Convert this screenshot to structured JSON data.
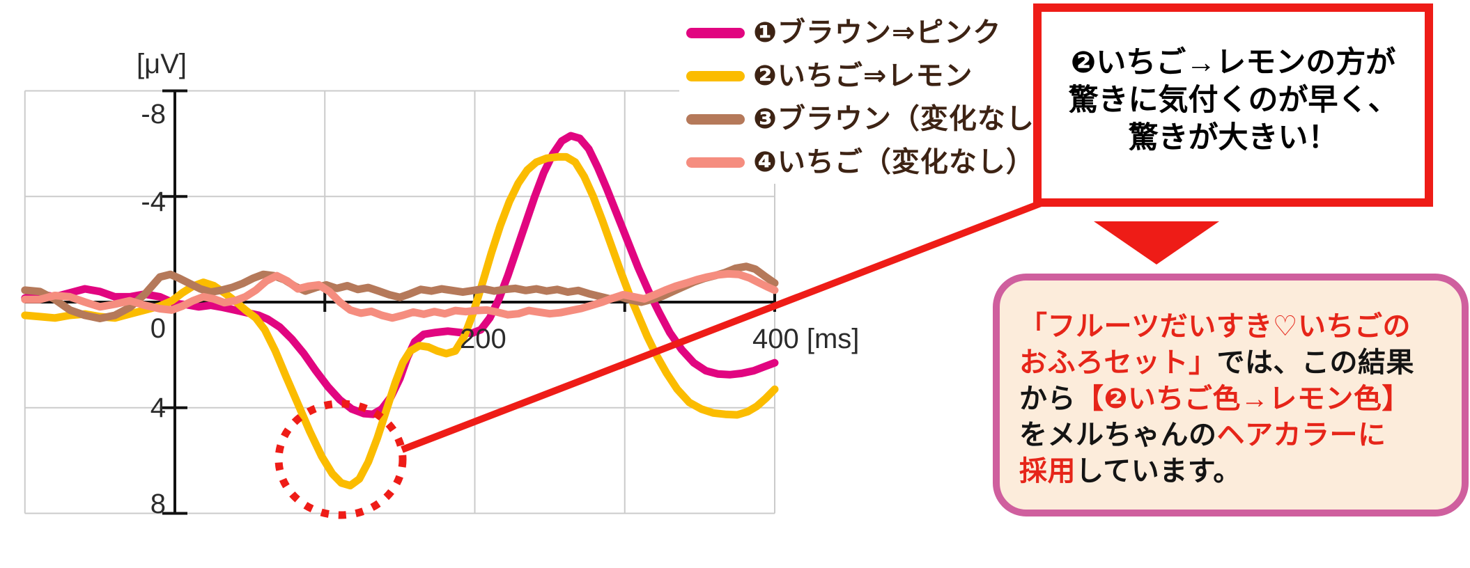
{
  "chart_data": {
    "type": "line",
    "title": "",
    "y_axis_unit_label": "[μV]",
    "x_axis_unit": "ms",
    "y_axis_inverted_negative_up": true,
    "grid": true,
    "legend_position": "top-right",
    "x_range_ms": [
      -100,
      400
    ],
    "y_range_uv": [
      -8,
      8
    ],
    "x_gridlines_ms": [
      -100,
      0,
      100,
      200,
      300,
      400
    ],
    "y_gridlines_uv": [
      -8,
      -4,
      0,
      4,
      8
    ],
    "x_axis_ticks_ms": [
      100,
      200,
      300,
      400
    ],
    "y_tick_labels": [
      "-8",
      "-4",
      "0",
      "4",
      "8"
    ],
    "x_tick_labels": [
      "200",
      "400 [ms]"
    ],
    "series": [
      {
        "name": "❶ブラウン⇒ピンク",
        "color": "#e10580",
        "points": [
          [
            -100,
            -0.15
          ],
          [
            -90,
            -0.3
          ],
          [
            -80,
            -0.2
          ],
          [
            -70,
            -0.35
          ],
          [
            -60,
            -0.5
          ],
          [
            -50,
            -0.4
          ],
          [
            -40,
            -0.2
          ],
          [
            -30,
            -0.2
          ],
          [
            -20,
            -0.3
          ],
          [
            -10,
            -0.2
          ],
          [
            0,
            0.05
          ],
          [
            8,
            0.1
          ],
          [
            16,
            0.18
          ],
          [
            24,
            0.12
          ],
          [
            32,
            0.2
          ],
          [
            40,
            0.3
          ],
          [
            48,
            0.4
          ],
          [
            56,
            0.5
          ],
          [
            62,
            0.65
          ],
          [
            70,
            0.95
          ],
          [
            78,
            1.4
          ],
          [
            86,
            1.95
          ],
          [
            94,
            2.6
          ],
          [
            102,
            3.2
          ],
          [
            110,
            3.7
          ],
          [
            118,
            4.05
          ],
          [
            126,
            4.22
          ],
          [
            132,
            4.25
          ],
          [
            138,
            4.05
          ],
          [
            144,
            3.6
          ],
          [
            150,
            2.9
          ],
          [
            155,
            2.1
          ],
          [
            160,
            1.5
          ],
          [
            166,
            1.22
          ],
          [
            174,
            1.15
          ],
          [
            182,
            1.1
          ],
          [
            190,
            1.15
          ],
          [
            198,
            1.18
          ],
          [
            204,
            1.05
          ],
          [
            210,
            0.6
          ],
          [
            216,
            -0.1
          ],
          [
            222,
            -1.0
          ],
          [
            228,
            -2.0
          ],
          [
            234,
            -3.0
          ],
          [
            240,
            -4.0
          ],
          [
            246,
            -4.9
          ],
          [
            252,
            -5.6
          ],
          [
            258,
            -6.1
          ],
          [
            264,
            -6.3
          ],
          [
            270,
            -6.2
          ],
          [
            276,
            -5.8
          ],
          [
            282,
            -5.1
          ],
          [
            288,
            -4.3
          ],
          [
            295,
            -3.3
          ],
          [
            302,
            -2.3
          ],
          [
            309,
            -1.3
          ],
          [
            316,
            -0.4
          ],
          [
            323,
            0.4
          ],
          [
            330,
            1.15
          ],
          [
            338,
            1.8
          ],
          [
            346,
            2.3
          ],
          [
            354,
            2.6
          ],
          [
            362,
            2.72
          ],
          [
            370,
            2.75
          ],
          [
            378,
            2.7
          ],
          [
            386,
            2.6
          ],
          [
            393,
            2.45
          ],
          [
            400,
            2.3
          ]
        ]
      },
      {
        "name": "❷いちご⇒レモン",
        "color": "#fbbc00",
        "points": [
          [
            -100,
            0.5
          ],
          [
            -90,
            0.55
          ],
          [
            -80,
            0.6
          ],
          [
            -70,
            0.5
          ],
          [
            -60,
            0.45
          ],
          [
            -50,
            0.55
          ],
          [
            -40,
            0.6
          ],
          [
            -30,
            0.45
          ],
          [
            -20,
            0.3
          ],
          [
            -10,
            0.15
          ],
          [
            -2,
            -0.05
          ],
          [
            5,
            -0.35
          ],
          [
            12,
            -0.6
          ],
          [
            19,
            -0.75
          ],
          [
            26,
            -0.62
          ],
          [
            33,
            -0.35
          ],
          [
            40,
            -0.05
          ],
          [
            47,
            0.3
          ],
          [
            54,
            0.6
          ],
          [
            60,
            1.05
          ],
          [
            67,
            1.85
          ],
          [
            74,
            2.8
          ],
          [
            82,
            3.85
          ],
          [
            90,
            4.9
          ],
          [
            98,
            5.85
          ],
          [
            105,
            6.5
          ],
          [
            111,
            6.85
          ],
          [
            117,
            6.95
          ],
          [
            123,
            6.7
          ],
          [
            129,
            6.05
          ],
          [
            135,
            5.15
          ],
          [
            141,
            4.1
          ],
          [
            147,
            3.05
          ],
          [
            152,
            2.3
          ],
          [
            157,
            1.85
          ],
          [
            163,
            1.65
          ],
          [
            169,
            1.7
          ],
          [
            175,
            1.85
          ],
          [
            181,
            1.95
          ],
          [
            187,
            1.85
          ],
          [
            193,
            1.3
          ],
          [
            199,
            0.4
          ],
          [
            205,
            -0.7
          ],
          [
            211,
            -1.85
          ],
          [
            217,
            -2.9
          ],
          [
            223,
            -3.8
          ],
          [
            229,
            -4.5
          ],
          [
            235,
            -5.0
          ],
          [
            241,
            -5.3
          ],
          [
            248,
            -5.45
          ],
          [
            255,
            -5.5
          ],
          [
            261,
            -5.5
          ],
          [
            267,
            -5.3
          ],
          [
            273,
            -4.75
          ],
          [
            279,
            -4.0
          ],
          [
            285,
            -3.1
          ],
          [
            291,
            -2.15
          ],
          [
            297,
            -1.2
          ],
          [
            303,
            -0.3
          ],
          [
            309,
            0.5
          ],
          [
            315,
            1.3
          ],
          [
            321,
            2.0
          ],
          [
            328,
            2.7
          ],
          [
            335,
            3.3
          ],
          [
            343,
            3.8
          ],
          [
            351,
            4.05
          ],
          [
            359,
            4.2
          ],
          [
            367,
            4.25
          ],
          [
            375,
            4.27
          ],
          [
            382,
            4.15
          ],
          [
            388,
            3.95
          ],
          [
            394,
            3.65
          ],
          [
            400,
            3.3
          ]
        ]
      },
      {
        "name": "❸ブラウン（変化なし）",
        "color": "#b5795a",
        "points": [
          [
            -100,
            -0.45
          ],
          [
            -90,
            -0.4
          ],
          [
            -80,
            -0.1
          ],
          [
            -70,
            0.3
          ],
          [
            -60,
            0.5
          ],
          [
            -50,
            0.62
          ],
          [
            -40,
            0.5
          ],
          [
            -30,
            0.2
          ],
          [
            -20,
            -0.3
          ],
          [
            -10,
            -0.95
          ],
          [
            -3,
            -1.05
          ],
          [
            3,
            -0.9
          ],
          [
            10,
            -0.7
          ],
          [
            17,
            -0.5
          ],
          [
            24,
            -0.38
          ],
          [
            31,
            -0.45
          ],
          [
            38,
            -0.55
          ],
          [
            45,
            -0.7
          ],
          [
            52,
            -0.9
          ],
          [
            59,
            -1.05
          ],
          [
            66,
            -1.0
          ],
          [
            73,
            -0.85
          ],
          [
            80,
            -0.6
          ],
          [
            87,
            -0.42
          ],
          [
            94,
            -0.55
          ],
          [
            101,
            -0.65
          ],
          [
            108,
            -0.52
          ],
          [
            115,
            -0.62
          ],
          [
            122,
            -0.48
          ],
          [
            129,
            -0.55
          ],
          [
            136,
            -0.42
          ],
          [
            143,
            -0.28
          ],
          [
            150,
            -0.18
          ],
          [
            157,
            -0.32
          ],
          [
            164,
            -0.48
          ],
          [
            171,
            -0.42
          ],
          [
            178,
            -0.5
          ],
          [
            185,
            -0.44
          ],
          [
            192,
            -0.38
          ],
          [
            199,
            -0.44
          ],
          [
            206,
            -0.5
          ],
          [
            213,
            -0.42
          ],
          [
            220,
            -0.48
          ],
          [
            227,
            -0.52
          ],
          [
            234,
            -0.44
          ],
          [
            241,
            -0.5
          ],
          [
            248,
            -0.42
          ],
          [
            255,
            -0.48
          ],
          [
            262,
            -0.38
          ],
          [
            269,
            -0.44
          ],
          [
            276,
            -0.32
          ],
          [
            283,
            -0.22
          ],
          [
            290,
            -0.12
          ],
          [
            297,
            -0.2
          ],
          [
            304,
            -0.08
          ],
          [
            311,
            0.0
          ],
          [
            318,
            -0.1
          ],
          [
            325,
            -0.22
          ],
          [
            332,
            -0.4
          ],
          [
            339,
            -0.58
          ],
          [
            346,
            -0.76
          ],
          [
            353,
            -0.9
          ],
          [
            360,
            -1.0
          ],
          [
            367,
            -1.12
          ],
          [
            374,
            -1.28
          ],
          [
            381,
            -1.35
          ],
          [
            387,
            -1.25
          ],
          [
            393,
            -1.0
          ],
          [
            400,
            -0.72
          ]
        ]
      },
      {
        "name": "❹いちご（変化なし）",
        "color": "#f58d7f",
        "points": [
          [
            -100,
            -0.1
          ],
          [
            -90,
            -0.1
          ],
          [
            -80,
            -0.25
          ],
          [
            -70,
            -0.2
          ],
          [
            -60,
            0.0
          ],
          [
            -50,
            0.18
          ],
          [
            -40,
            0.08
          ],
          [
            -30,
            -0.05
          ],
          [
            -20,
            0.12
          ],
          [
            -10,
            0.25
          ],
          [
            -2,
            0.3
          ],
          [
            5,
            0.15
          ],
          [
            12,
            -0.05
          ],
          [
            19,
            -0.2
          ],
          [
            26,
            -0.12
          ],
          [
            33,
            0.02
          ],
          [
            40,
            -0.05
          ],
          [
            47,
            -0.2
          ],
          [
            54,
            -0.45
          ],
          [
            61,
            -0.8
          ],
          [
            68,
            -1.0
          ],
          [
            75,
            -0.8
          ],
          [
            82,
            -0.5
          ],
          [
            89,
            -0.6
          ],
          [
            96,
            -0.65
          ],
          [
            103,
            -0.4
          ],
          [
            110,
            0.0
          ],
          [
            117,
            0.3
          ],
          [
            124,
            0.42
          ],
          [
            131,
            0.35
          ],
          [
            138,
            0.5
          ],
          [
            145,
            0.6
          ],
          [
            152,
            0.5
          ],
          [
            159,
            0.38
          ],
          [
            166,
            0.46
          ],
          [
            173,
            0.36
          ],
          [
            180,
            0.44
          ],
          [
            187,
            0.32
          ],
          [
            194,
            0.36
          ],
          [
            201,
            0.32
          ],
          [
            208,
            0.3
          ],
          [
            215,
            0.38
          ],
          [
            222,
            0.48
          ],
          [
            229,
            0.44
          ],
          [
            236,
            0.32
          ],
          [
            243,
            0.38
          ],
          [
            250,
            0.44
          ],
          [
            257,
            0.4
          ],
          [
            264,
            0.32
          ],
          [
            271,
            0.24
          ],
          [
            278,
            0.12
          ],
          [
            285,
            0.0
          ],
          [
            292,
            -0.15
          ],
          [
            299,
            -0.28
          ],
          [
            306,
            -0.2
          ],
          [
            313,
            -0.12
          ],
          [
            320,
            -0.28
          ],
          [
            327,
            -0.45
          ],
          [
            334,
            -0.6
          ],
          [
            341,
            -0.72
          ],
          [
            348,
            -0.85
          ],
          [
            355,
            -0.95
          ],
          [
            362,
            -1.03
          ],
          [
            369,
            -1.07
          ],
          [
            376,
            -1.05
          ],
          [
            383,
            -0.92
          ],
          [
            390,
            -0.72
          ],
          [
            395,
            -0.58
          ],
          [
            400,
            -0.45
          ]
        ]
      }
    ],
    "annotations": {
      "dotted_circle_highlight": {
        "series": "❷いちご⇒レモン",
        "center_ms": 110,
        "center_uv": 6.0,
        "color": "#ee1c17"
      },
      "connector_line_color": "#ee1c17"
    }
  },
  "legend": {
    "items": [
      {
        "label": "❶ブラウン⇒ピンク",
        "color": "#e10580"
      },
      {
        "label": "❷いちご⇒レモン",
        "color": "#fbbc00"
      },
      {
        "label": "❸ブラウン（変化なし）",
        "color": "#b5795a"
      },
      {
        "label": "❹いちご（変化なし）",
        "color": "#f58d7f"
      }
    ]
  },
  "callout_box": {
    "border_color": "#ee1c17",
    "lines": [
      "❷いちご→レモンの方が",
      "驚きに気付くのが早く、",
      "驚きが大きい！"
    ]
  },
  "result_box": {
    "border_color": "#cf5f9e",
    "background_color": "#fcecdb",
    "palette": {
      "red": "#e62519",
      "black": "#141414"
    },
    "lines": [
      [
        {
          "t": "「フルーツだいすき♡いちごの",
          "c": "red"
        }
      ],
      [
        {
          "t": "おふろセット」",
          "c": "red"
        },
        {
          "t": "では、この結果",
          "c": "black"
        }
      ],
      [
        {
          "t": "から",
          "c": "black"
        },
        {
          "t": "【❷いちご色→レモン色】",
          "c": "red"
        }
      ],
      [
        {
          "t": "をメルちゃんの",
          "c": "black"
        },
        {
          "t": "ヘアカラーに",
          "c": "red"
        }
      ],
      [
        {
          "t": "採用",
          "c": "red"
        },
        {
          "t": "しています。",
          "c": "black"
        }
      ]
    ]
  }
}
